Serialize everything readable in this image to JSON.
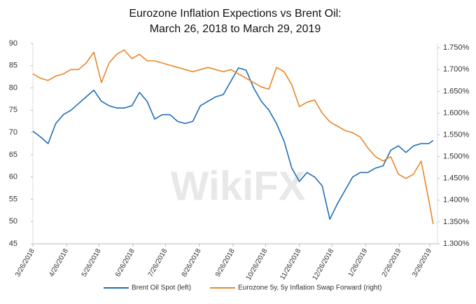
{
  "chart_data": {
    "type": "line",
    "title": "Eurozone Inflation Expections vs Brent Oil:",
    "subtitle": "March 26, 2018 to March 29, 2019",
    "watermark": "WikiFX",
    "x": [
      "2018-03-26",
      "2018-04-02",
      "2018-04-09",
      "2018-04-16",
      "2018-04-23",
      "2018-04-30",
      "2018-05-07",
      "2018-05-14",
      "2018-05-21",
      "2018-05-28",
      "2018-06-04",
      "2018-06-11",
      "2018-06-18",
      "2018-06-25",
      "2018-07-02",
      "2018-07-09",
      "2018-07-16",
      "2018-07-23",
      "2018-07-30",
      "2018-08-06",
      "2018-08-13",
      "2018-08-20",
      "2018-08-27",
      "2018-09-03",
      "2018-09-10",
      "2018-09-17",
      "2018-09-24",
      "2018-10-01",
      "2018-10-08",
      "2018-10-15",
      "2018-10-22",
      "2018-10-29",
      "2018-11-05",
      "2018-11-12",
      "2018-11-19",
      "2018-11-26",
      "2018-12-03",
      "2018-12-10",
      "2018-12-17",
      "2018-12-24",
      "2018-12-31",
      "2019-01-07",
      "2019-01-14",
      "2019-01-21",
      "2019-01-28",
      "2019-02-04",
      "2019-02-11",
      "2019-02-18",
      "2019-02-25",
      "2019-03-04",
      "2019-03-11",
      "2019-03-18",
      "2019-03-25",
      "2019-03-29"
    ],
    "series": [
      {
        "name": "Brent Oil Spot (left)",
        "color": "#1f6db5",
        "axis": "y",
        "values": [
          70.3,
          69,
          67.5,
          72,
          74,
          75,
          76.5,
          78,
          79.5,
          77,
          76,
          75.5,
          75.5,
          76,
          79,
          77,
          73,
          74,
          74,
          72.5,
          72,
          72.5,
          76,
          77,
          78,
          78.5,
          81.5,
          84.5,
          84,
          80,
          77,
          75,
          72,
          68,
          62,
          59,
          61,
          60,
          58,
          50.5,
          54,
          57,
          60,
          61,
          61,
          62,
          62.5,
          66,
          67,
          65.5,
          67,
          67.5,
          67.5,
          68.2
        ]
      },
      {
        "name": "Eurozone 5y, 5y Inflation Swap Forward (right)",
        "color": "#e8862a",
        "axis": "y2",
        "values": [
          1.69,
          1.68,
          1.675,
          1.685,
          1.69,
          1.7,
          1.7,
          1.715,
          1.74,
          1.67,
          1.715,
          1.735,
          1.745,
          1.725,
          1.735,
          1.72,
          1.72,
          1.715,
          1.71,
          1.705,
          1.7,
          1.695,
          1.7,
          1.705,
          1.7,
          1.695,
          1.7,
          1.69,
          1.68,
          1.67,
          1.66,
          1.655,
          1.705,
          1.695,
          1.665,
          1.615,
          1.625,
          1.63,
          1.6,
          1.58,
          1.57,
          1.56,
          1.555,
          1.545,
          1.52,
          1.5,
          1.49,
          1.5,
          1.46,
          1.45,
          1.46,
          1.49,
          1.4,
          1.345
        ]
      }
    ],
    "xlim": [
      "2018-03-26",
      "2019-04-02"
    ],
    "xticks": [
      {
        "value": "2018-03-26",
        "label": "3/26/2018"
      },
      {
        "value": "2018-04-26",
        "label": "4/26/2018"
      },
      {
        "value": "2018-05-26",
        "label": "5/26/2018"
      },
      {
        "value": "2018-06-26",
        "label": "6/26/2018"
      },
      {
        "value": "2018-07-26",
        "label": "7/26/2018"
      },
      {
        "value": "2018-08-26",
        "label": "8/26/2018"
      },
      {
        "value": "2018-09-26",
        "label": "9/26/2018"
      },
      {
        "value": "2018-10-26",
        "label": "10/26/2018"
      },
      {
        "value": "2018-11-26",
        "label": "11/26/2018"
      },
      {
        "value": "2018-12-26",
        "label": "12/26/2018"
      },
      {
        "value": "2019-01-26",
        "label": "1/26/2019"
      },
      {
        "value": "2019-02-26",
        "label": "2/26/2019"
      },
      {
        "value": "2019-03-26",
        "label": "3/26/2019"
      }
    ],
    "ylim": [
      45,
      90
    ],
    "yticks": [
      45,
      50,
      55,
      60,
      65,
      70,
      75,
      80,
      85,
      90
    ],
    "y2lim": [
      1.3,
      1.76
    ],
    "y2ticks": [
      {
        "value": 1.3,
        "label": "1.300%"
      },
      {
        "value": 1.35,
        "label": "1.350%"
      },
      {
        "value": 1.4,
        "label": "1.400%"
      },
      {
        "value": 1.45,
        "label": "1.450%"
      },
      {
        "value": 1.5,
        "label": "1.500%"
      },
      {
        "value": 1.55,
        "label": "1.550%"
      },
      {
        "value": 1.6,
        "label": "1.600%"
      },
      {
        "value": 1.65,
        "label": "1.650%"
      },
      {
        "value": 1.7,
        "label": "1.700%"
      },
      {
        "value": 1.75,
        "label": "1.750%"
      }
    ],
    "legend": "bottom"
  }
}
